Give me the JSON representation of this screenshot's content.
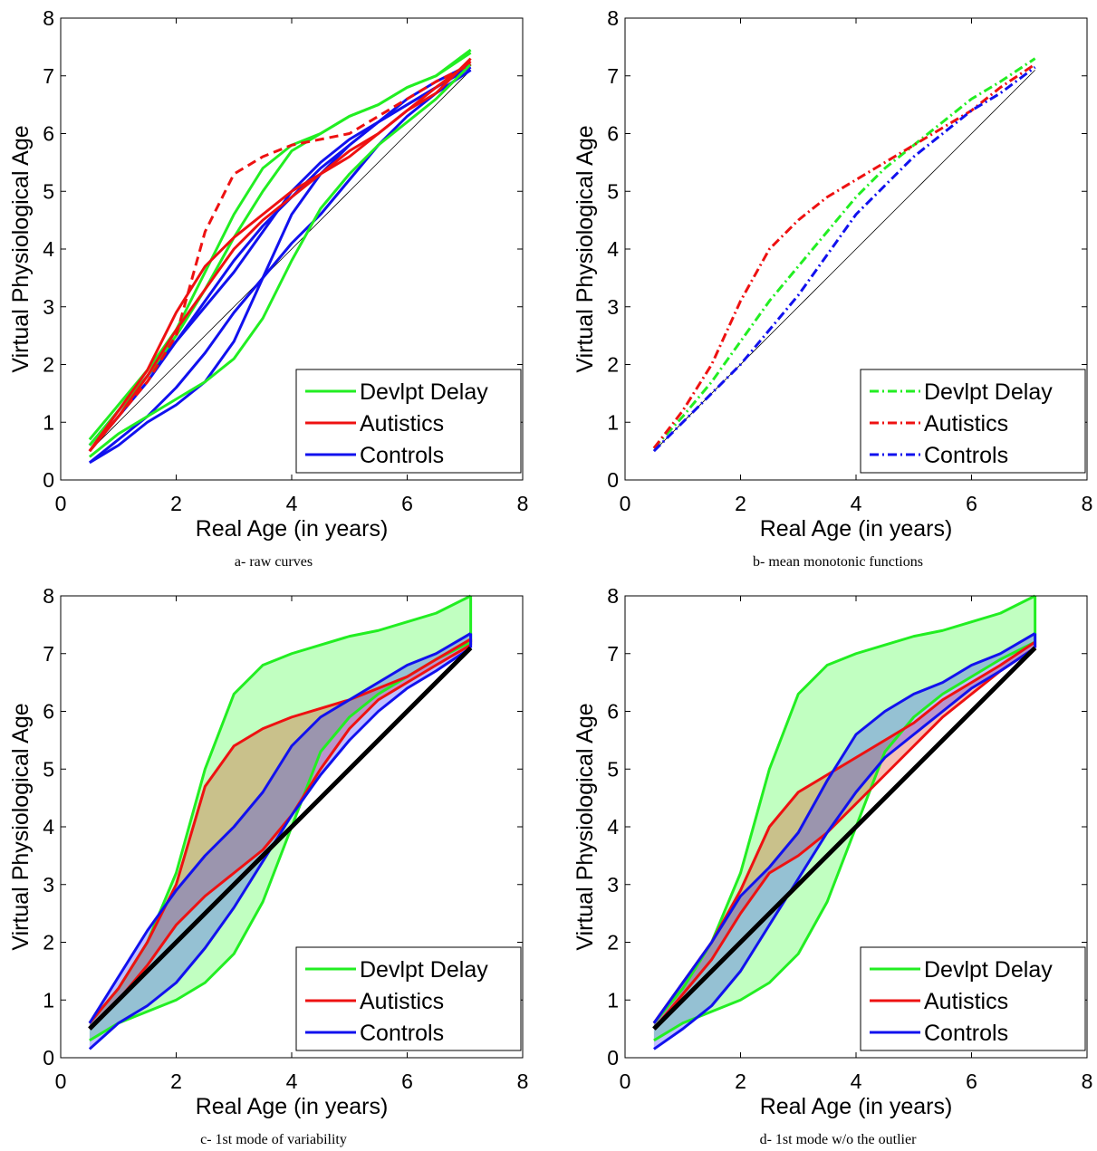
{
  "chart_data": [
    {
      "type": "line",
      "caption": "a- raw curves",
      "xlabel": "Real Age (in years)",
      "ylabel": "Virtual Physiological Age",
      "xlim": [
        0,
        8
      ],
      "ylim": [
        0,
        8
      ],
      "xticks": [
        0,
        2,
        4,
        6,
        8
      ],
      "yticks": [
        0,
        1,
        2,
        3,
        4,
        5,
        6,
        7,
        8
      ],
      "x": [
        0.5,
        1,
        1.5,
        2,
        2.5,
        3,
        3.5,
        4,
        4.5,
        5,
        5.5,
        6,
        6.5,
        7.1
      ],
      "legend": {
        "loc": "lower right",
        "entries": [
          {
            "name": "Devlpt Delay",
            "color": "#22ee22",
            "linestyle": "solid"
          },
          {
            "name": "Autistics",
            "color": "#ee1111",
            "linestyle": "solid"
          },
          {
            "name": "Controls",
            "color": "#1111ee",
            "linestyle": "solid"
          }
        ]
      },
      "series": [
        {
          "color": "#000000",
          "linestyle": "solid",
          "linewidth": 0.8,
          "values": [
            0.5,
            1,
            1.5,
            2,
            2.5,
            3,
            3.5,
            4,
            4.5,
            5,
            5.5,
            6,
            6.5,
            7.1
          ]
        },
        {
          "color": "#1111ee",
          "linestyle": "solid",
          "linewidth": 3,
          "values": [
            0.3,
            0.7,
            1.1,
            1.6,
            2.2,
            2.9,
            3.5,
            4.1,
            4.6,
            5.2,
            5.8,
            6.3,
            6.7,
            7.1
          ]
        },
        {
          "color": "#1111ee",
          "linestyle": "solid",
          "linewidth": 3,
          "values": [
            0.3,
            0.6,
            1.0,
            1.3,
            1.7,
            2.4,
            3.5,
            4.6,
            5.3,
            5.8,
            6.2,
            6.5,
            6.8,
            7.2
          ]
        },
        {
          "color": "#1111ee",
          "linestyle": "solid",
          "linewidth": 3,
          "values": [
            0.6,
            1.2,
            1.8,
            2.4,
            3.0,
            3.6,
            4.3,
            5.0,
            5.5,
            5.9,
            6.2,
            6.6,
            6.9,
            7.2
          ]
        },
        {
          "color": "#1111ee",
          "linestyle": "solid",
          "linewidth": 3,
          "values": [
            0.5,
            1.1,
            1.7,
            2.4,
            3.1,
            3.8,
            4.4,
            4.9,
            5.4,
            5.8,
            6.2,
            6.5,
            6.8,
            7.15
          ]
        },
        {
          "color": "#22ee22",
          "linestyle": "solid",
          "linewidth": 3,
          "values": [
            0.7,
            1.3,
            1.9,
            2.6,
            3.6,
            4.6,
            5.4,
            5.8,
            6.0,
            6.3,
            6.5,
            6.8,
            7.0,
            7.45
          ]
        },
        {
          "color": "#22ee22",
          "linestyle": "solid",
          "linewidth": 3,
          "values": [
            0.4,
            0.8,
            1.1,
            1.4,
            1.7,
            2.1,
            2.8,
            3.8,
            4.7,
            5.3,
            5.8,
            6.2,
            6.6,
            7.2
          ]
        },
        {
          "color": "#22ee22",
          "linestyle": "solid",
          "linewidth": 3,
          "values": [
            0.6,
            1.2,
            1.8,
            2.5,
            3.3,
            4.2,
            5.0,
            5.7,
            6.0,
            6.3,
            6.5,
            6.8,
            7.0,
            7.4
          ]
        },
        {
          "color": "#ee1111",
          "linestyle": "dashed",
          "linewidth": 3,
          "values": [
            0.5,
            1.1,
            1.7,
            2.5,
            4.3,
            5.3,
            5.6,
            5.8,
            5.9,
            6.0,
            6.3,
            6.6,
            6.9,
            7.2
          ]
        },
        {
          "color": "#ee1111",
          "linestyle": "solid",
          "linewidth": 3,
          "values": [
            0.5,
            1.2,
            1.9,
            2.9,
            3.7,
            4.2,
            4.6,
            5.0,
            5.3,
            5.7,
            6.0,
            6.4,
            6.7,
            7.3
          ]
        },
        {
          "color": "#ee1111",
          "linestyle": "solid",
          "linewidth": 3,
          "values": [
            0.5,
            1.1,
            1.8,
            2.6,
            3.3,
            4.0,
            4.5,
            4.9,
            5.3,
            5.6,
            6.0,
            6.4,
            6.8,
            7.25
          ]
        }
      ]
    },
    {
      "type": "line",
      "caption": "b- mean monotonic functions",
      "xlabel": "Real Age (in years)",
      "ylabel": "Virtual Physiological Age",
      "xlim": [
        0,
        8
      ],
      "ylim": [
        0,
        8
      ],
      "xticks": [
        0,
        2,
        4,
        6,
        8
      ],
      "yticks": [
        0,
        1,
        2,
        3,
        4,
        5,
        6,
        7,
        8
      ],
      "x": [
        0.5,
        1,
        1.5,
        2,
        2.5,
        3,
        3.5,
        4,
        4.5,
        5,
        5.5,
        6,
        6.5,
        7.1
      ],
      "legend": {
        "loc": "lower right",
        "entries": [
          {
            "name": "Devlpt Delay",
            "color": "#22ee22",
            "linestyle": "dashdot"
          },
          {
            "name": "Autistics",
            "color": "#ee1111",
            "linestyle": "dashdot"
          },
          {
            "name": "Controls",
            "color": "#1111ee",
            "linestyle": "dashdot"
          }
        ]
      },
      "series": [
        {
          "color": "#000000",
          "linestyle": "solid",
          "linewidth": 0.8,
          "values": [
            0.5,
            1,
            1.5,
            2,
            2.5,
            3,
            3.5,
            4,
            4.5,
            5,
            5.5,
            6,
            6.5,
            7.1
          ]
        },
        {
          "color": "#22ee22",
          "linestyle": "dashdot",
          "linewidth": 3,
          "values": [
            0.55,
            1.1,
            1.7,
            2.4,
            3.1,
            3.7,
            4.3,
            4.9,
            5.4,
            5.8,
            6.2,
            6.6,
            6.9,
            7.3
          ]
        },
        {
          "color": "#ee1111",
          "linestyle": "dashdot",
          "linewidth": 3,
          "values": [
            0.55,
            1.2,
            2.0,
            3.1,
            4.0,
            4.5,
            4.9,
            5.2,
            5.5,
            5.8,
            6.1,
            6.4,
            6.8,
            7.2
          ]
        },
        {
          "color": "#1111ee",
          "linestyle": "dashdot",
          "linewidth": 3,
          "values": [
            0.5,
            1.0,
            1.5,
            2.0,
            2.6,
            3.2,
            3.9,
            4.6,
            5.1,
            5.6,
            6.0,
            6.4,
            6.7,
            7.15
          ]
        }
      ]
    },
    {
      "type": "line",
      "caption": "c- 1st mode of variability",
      "xlabel": "Real Age (in years)",
      "ylabel": "Virtual Physiological Age",
      "xlim": [
        0,
        8
      ],
      "ylim": [
        0,
        8
      ],
      "xticks": [
        0,
        2,
        4,
        6,
        8
      ],
      "yticks": [
        0,
        1,
        2,
        3,
        4,
        5,
        6,
        7,
        8
      ],
      "x": [
        0.5,
        1,
        1.5,
        2,
        2.5,
        3,
        3.5,
        4,
        4.5,
        5,
        5.5,
        6,
        6.5,
        7.1
      ],
      "legend": {
        "loc": "lower right",
        "entries": [
          {
            "name": "Devlpt Delay",
            "color": "#22ee22",
            "linestyle": "solid"
          },
          {
            "name": "Autistics",
            "color": "#ee1111",
            "linestyle": "solid"
          },
          {
            "name": "Controls",
            "color": "#1111ee",
            "linestyle": "solid"
          }
        ]
      },
      "series": [
        {
          "color": "#22ee22",
          "fill": "#33ff33",
          "linestyle": "solid",
          "linewidth": 3,
          "values": [
            0.6,
            1.2,
            2.0,
            3.2,
            5.0,
            6.3,
            6.8,
            7.0,
            7.15,
            7.3,
            7.4,
            7.55,
            7.7,
            8.0
          ],
          "lower": [
            0.3,
            0.6,
            0.8,
            1.0,
            1.3,
            1.8,
            2.7,
            4.0,
            5.3,
            5.9,
            6.3,
            6.6,
            6.9,
            7.2
          ]
        },
        {
          "color": "#ee1111",
          "fill": "#dd3311",
          "linestyle": "solid",
          "linewidth": 3,
          "values": [
            0.6,
            1.2,
            2.0,
            3.0,
            4.7,
            5.4,
            5.7,
            5.9,
            6.05,
            6.2,
            6.4,
            6.6,
            6.9,
            7.25
          ],
          "lower": [
            0.5,
            1.0,
            1.6,
            2.3,
            2.8,
            3.2,
            3.6,
            4.2,
            5.0,
            5.7,
            6.2,
            6.5,
            6.8,
            7.15
          ]
        },
        {
          "color": "#1111ee",
          "fill": "#3333ff",
          "linestyle": "solid",
          "linewidth": 3,
          "values": [
            0.6,
            1.4,
            2.2,
            2.9,
            3.5,
            4.0,
            4.6,
            5.4,
            5.9,
            6.2,
            6.5,
            6.8,
            7.0,
            7.35
          ],
          "lower": [
            0.15,
            0.6,
            0.9,
            1.3,
            1.9,
            2.6,
            3.4,
            4.2,
            4.9,
            5.5,
            6.0,
            6.4,
            6.7,
            7.1
          ]
        },
        {
          "color": "#000000",
          "linestyle": "solid",
          "linewidth": 5,
          "values": [
            0.5,
            1,
            1.5,
            2,
            2.5,
            3,
            3.5,
            4,
            4.5,
            5,
            5.5,
            6,
            6.5,
            7.1
          ]
        }
      ]
    },
    {
      "type": "line",
      "caption": "d- 1st mode w/o the outlier",
      "xlabel": "Real Age (in years)",
      "ylabel": "Virtual Physiological Age",
      "xlim": [
        0,
        8
      ],
      "ylim": [
        0,
        8
      ],
      "xticks": [
        0,
        2,
        4,
        6,
        8
      ],
      "yticks": [
        0,
        1,
        2,
        3,
        4,
        5,
        6,
        7,
        8
      ],
      "x": [
        0.5,
        1,
        1.5,
        2,
        2.5,
        3,
        3.5,
        4,
        4.5,
        5,
        5.5,
        6,
        6.5,
        7.1
      ],
      "legend": {
        "loc": "lower right",
        "entries": [
          {
            "name": "Devlpt Delay",
            "color": "#22ee22",
            "linestyle": "solid"
          },
          {
            "name": "Autistics",
            "color": "#ee1111",
            "linestyle": "solid"
          },
          {
            "name": "Controls",
            "color": "#1111ee",
            "linestyle": "solid"
          }
        ]
      },
      "series": [
        {
          "color": "#22ee22",
          "fill": "#33ff33",
          "linestyle": "solid",
          "linewidth": 3,
          "values": [
            0.6,
            1.2,
            2.0,
            3.2,
            5.0,
            6.3,
            6.8,
            7.0,
            7.15,
            7.3,
            7.4,
            7.55,
            7.7,
            8.0
          ],
          "lower": [
            0.3,
            0.6,
            0.8,
            1.0,
            1.3,
            1.8,
            2.7,
            4.0,
            5.3,
            5.9,
            6.3,
            6.6,
            6.9,
            7.2
          ]
        },
        {
          "color": "#ee1111",
          "fill": "#dd3311",
          "linestyle": "solid",
          "linewidth": 3,
          "values": [
            0.6,
            1.3,
            2.0,
            2.9,
            4.0,
            4.6,
            4.9,
            5.2,
            5.5,
            5.8,
            6.2,
            6.5,
            6.8,
            7.2
          ],
          "lower": [
            0.5,
            1.1,
            1.7,
            2.5,
            3.2,
            3.5,
            3.9,
            4.4,
            4.9,
            5.4,
            5.9,
            6.3,
            6.7,
            7.1
          ]
        },
        {
          "color": "#1111ee",
          "fill": "#3333ff",
          "linestyle": "solid",
          "linewidth": 3,
          "values": [
            0.6,
            1.3,
            2.0,
            2.8,
            3.3,
            3.9,
            4.8,
            5.6,
            6.0,
            6.3,
            6.5,
            6.8,
            7.0,
            7.35
          ],
          "lower": [
            0.15,
            0.5,
            0.9,
            1.5,
            2.3,
            3.1,
            3.9,
            4.6,
            5.2,
            5.6,
            6.0,
            6.4,
            6.7,
            7.1
          ]
        },
        {
          "color": "#000000",
          "linestyle": "solid",
          "linewidth": 5,
          "values": [
            0.5,
            1,
            1.5,
            2,
            2.5,
            3,
            3.5,
            4,
            4.5,
            5,
            5.5,
            6,
            6.5,
            7.1
          ]
        }
      ]
    }
  ]
}
